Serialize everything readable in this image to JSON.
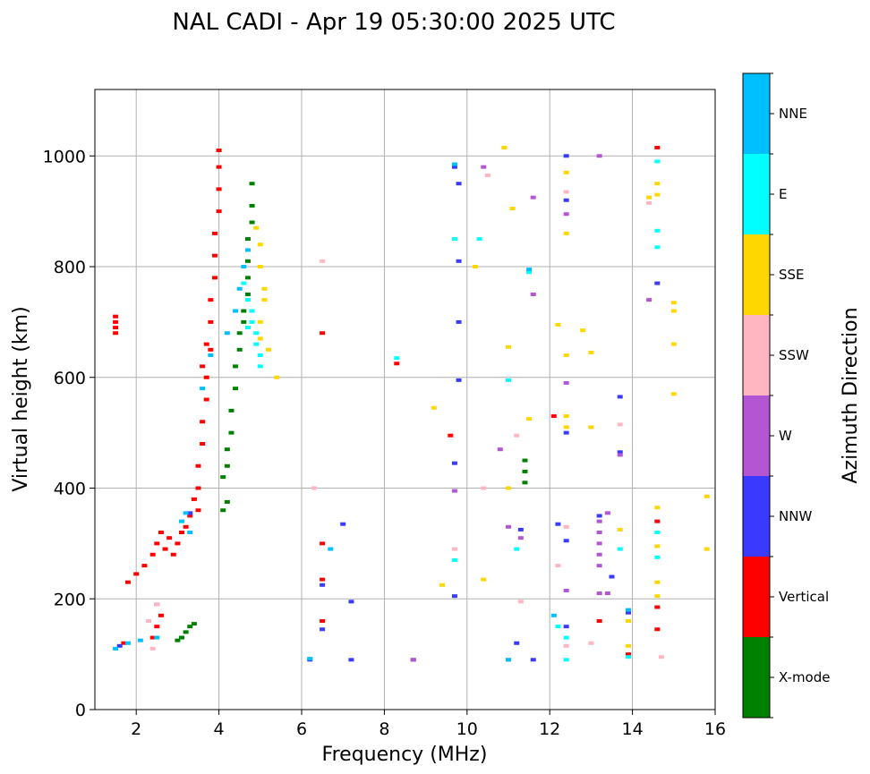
{
  "chart_data": {
    "type": "scatter",
    "title": "NAL CADI - Apr 19 05:30:00 2025 UTC",
    "xlabel": "Frequency (MHz)",
    "ylabel": "Virtual height (km)",
    "xlim": [
      1,
      16
    ],
    "ylim": [
      0,
      1120
    ],
    "xticks": [
      2,
      4,
      6,
      8,
      10,
      12,
      14,
      16
    ],
    "yticks": [
      0,
      200,
      400,
      600,
      800,
      1000
    ],
    "grid": true,
    "colorbar": {
      "title": "Azimuth Direction",
      "categories": [
        {
          "label": "X-mode",
          "color": "#008000"
        },
        {
          "label": "Vertical",
          "color": "#ff0000"
        },
        {
          "label": "NNW",
          "color": "#3a3aff"
        },
        {
          "label": "W",
          "color": "#b455d4"
        },
        {
          "label": "SSW",
          "color": "#ffb6c1"
        },
        {
          "label": "SSE",
          "color": "#ffd700"
        },
        {
          "label": "E",
          "color": "#00ffff"
        },
        {
          "label": "NNE",
          "color": "#00bfff"
        }
      ]
    },
    "series": [
      {
        "name": "X-mode",
        "color": "#008000",
        "points": [
          [
            3.0,
            125
          ],
          [
            3.1,
            130
          ],
          [
            3.2,
            140
          ],
          [
            3.3,
            150
          ],
          [
            3.4,
            155
          ],
          [
            4.1,
            360
          ],
          [
            4.2,
            375
          ],
          [
            4.1,
            420
          ],
          [
            4.2,
            440
          ],
          [
            4.2,
            470
          ],
          [
            4.3,
            500
          ],
          [
            4.3,
            540
          ],
          [
            4.4,
            580
          ],
          [
            4.4,
            620
          ],
          [
            4.5,
            650
          ],
          [
            4.5,
            680
          ],
          [
            4.6,
            700
          ],
          [
            4.6,
            720
          ],
          [
            4.7,
            750
          ],
          [
            4.7,
            780
          ],
          [
            4.7,
            810
          ],
          [
            4.7,
            850
          ],
          [
            4.8,
            880
          ],
          [
            4.8,
            910
          ],
          [
            4.8,
            950
          ],
          [
            11.4,
            410
          ],
          [
            11.4,
            430
          ],
          [
            11.4,
            450
          ]
        ]
      },
      {
        "name": "Vertical",
        "color": "#ff0000",
        "points": [
          [
            1.5,
            680
          ],
          [
            1.5,
            690
          ],
          [
            1.5,
            700
          ],
          [
            1.5,
            710
          ],
          [
            1.8,
            230
          ],
          [
            2.0,
            245
          ],
          [
            2.2,
            260
          ],
          [
            2.4,
            280
          ],
          [
            2.5,
            300
          ],
          [
            2.6,
            320
          ],
          [
            2.7,
            290
          ],
          [
            2.8,
            310
          ],
          [
            2.9,
            280
          ],
          [
            3.0,
            300
          ],
          [
            3.1,
            320
          ],
          [
            3.2,
            330
          ],
          [
            3.3,
            350
          ],
          [
            3.4,
            380
          ],
          [
            3.5,
            400
          ],
          [
            3.5,
            440
          ],
          [
            3.6,
            480
          ],
          [
            3.6,
            520
          ],
          [
            3.7,
            560
          ],
          [
            3.7,
            600
          ],
          [
            3.8,
            650
          ],
          [
            3.8,
            700
          ],
          [
            3.8,
            740
          ],
          [
            3.9,
            780
          ],
          [
            3.9,
            820
          ],
          [
            3.9,
            860
          ],
          [
            4.0,
            900
          ],
          [
            4.0,
            940
          ],
          [
            4.0,
            980
          ],
          [
            4.0,
            1010
          ],
          [
            3.6,
            620
          ],
          [
            3.7,
            660
          ],
          [
            3.5,
            360
          ],
          [
            2.4,
            130
          ],
          [
            2.5,
            150
          ],
          [
            2.6,
            170
          ],
          [
            1.7,
            120
          ],
          [
            6.5,
            680
          ],
          [
            6.5,
            300
          ],
          [
            6.5,
            235
          ],
          [
            6.5,
            160
          ],
          [
            8.3,
            625
          ],
          [
            9.6,
            495
          ],
          [
            12.1,
            530
          ],
          [
            13.2,
            160
          ],
          [
            13.9,
            100
          ],
          [
            14.6,
            1015
          ],
          [
            14.6,
            340
          ],
          [
            14.6,
            185
          ],
          [
            14.6,
            145
          ]
        ]
      },
      {
        "name": "NNW",
        "color": "#3a3aff",
        "points": [
          [
            1.6,
            115
          ],
          [
            2.5,
            190
          ],
          [
            3.3,
            355
          ],
          [
            6.2,
            90
          ],
          [
            6.5,
            225
          ],
          [
            6.5,
            145
          ],
          [
            7.0,
            335
          ],
          [
            7.2,
            90
          ],
          [
            7.2,
            195
          ],
          [
            8.7,
            90
          ],
          [
            9.7,
            980
          ],
          [
            9.8,
            950
          ],
          [
            9.8,
            810
          ],
          [
            9.8,
            700
          ],
          [
            9.8,
            595
          ],
          [
            9.7,
            445
          ],
          [
            9.7,
            205
          ],
          [
            11.2,
            120
          ],
          [
            11.3,
            325
          ],
          [
            11.6,
            90
          ],
          [
            12.2,
            335
          ],
          [
            12.4,
            1000
          ],
          [
            12.4,
            920
          ],
          [
            12.4,
            500
          ],
          [
            12.4,
            305
          ],
          [
            12.4,
            150
          ],
          [
            13.2,
            350
          ],
          [
            13.5,
            240
          ],
          [
            13.7,
            565
          ],
          [
            13.7,
            465
          ],
          [
            13.9,
            175
          ],
          [
            14.6,
            770
          ]
        ]
      },
      {
        "name": "W",
        "color": "#b455d4",
        "points": [
          [
            9.7,
            395
          ],
          [
            10.4,
            980
          ],
          [
            10.8,
            470
          ],
          [
            11.0,
            330
          ],
          [
            11.3,
            310
          ],
          [
            11.6,
            925
          ],
          [
            11.6,
            750
          ],
          [
            12.4,
            590
          ],
          [
            12.4,
            215
          ],
          [
            12.4,
            895
          ],
          [
            13.2,
            1000
          ],
          [
            13.2,
            340
          ],
          [
            13.2,
            320
          ],
          [
            13.2,
            300
          ],
          [
            13.2,
            280
          ],
          [
            13.2,
            260
          ],
          [
            13.2,
            210
          ],
          [
            13.4,
            355
          ],
          [
            13.4,
            210
          ],
          [
            13.7,
            460
          ],
          [
            14.4,
            740
          ],
          [
            8.7,
            90
          ],
          [
            11.0,
            90
          ]
        ]
      },
      {
        "name": "SSW",
        "color": "#ffb6c1",
        "points": [
          [
            2.3,
            160
          ],
          [
            2.5,
            190
          ],
          [
            2.4,
            110
          ],
          [
            6.3,
            400
          ],
          [
            6.5,
            810
          ],
          [
            9.7,
            290
          ],
          [
            10.4,
            400
          ],
          [
            10.5,
            965
          ],
          [
            11.2,
            495
          ],
          [
            11.3,
            195
          ],
          [
            12.2,
            260
          ],
          [
            12.4,
            330
          ],
          [
            12.4,
            115
          ],
          [
            12.4,
            935
          ],
          [
            13.0,
            120
          ],
          [
            13.7,
            515
          ],
          [
            14.4,
            915
          ],
          [
            14.7,
            95
          ]
        ]
      },
      {
        "name": "SSE",
        "color": "#ffd700",
        "points": [
          [
            4.9,
            870
          ],
          [
            5.0,
            840
          ],
          [
            5.0,
            800
          ],
          [
            5.1,
            760
          ],
          [
            5.1,
            740
          ],
          [
            5.0,
            700
          ],
          [
            5.0,
            670
          ],
          [
            5.2,
            650
          ],
          [
            5.4,
            600
          ],
          [
            9.2,
            545
          ],
          [
            9.4,
            225
          ],
          [
            10.2,
            800
          ],
          [
            10.4,
            235
          ],
          [
            10.9,
            1015
          ],
          [
            11.0,
            400
          ],
          [
            11.0,
            655
          ],
          [
            11.1,
            905
          ],
          [
            11.5,
            525
          ],
          [
            12.2,
            695
          ],
          [
            12.4,
            970
          ],
          [
            12.4,
            860
          ],
          [
            12.4,
            640
          ],
          [
            12.4,
            530
          ],
          [
            12.4,
            510
          ],
          [
            12.8,
            685
          ],
          [
            13.0,
            645
          ],
          [
            13.0,
            510
          ],
          [
            13.7,
            325
          ],
          [
            14.4,
            925
          ],
          [
            14.6,
            950
          ],
          [
            14.6,
            930
          ],
          [
            14.6,
            365
          ],
          [
            14.6,
            295
          ],
          [
            14.6,
            230
          ],
          [
            14.6,
            205
          ],
          [
            15.0,
            735
          ],
          [
            15.0,
            720
          ],
          [
            15.0,
            660
          ],
          [
            15.0,
            570
          ],
          [
            15.8,
            385
          ],
          [
            15.8,
            290
          ],
          [
            13.9,
            160
          ],
          [
            13.9,
            115
          ]
        ]
      },
      {
        "name": "E",
        "color": "#00ffff",
        "points": [
          [
            4.6,
            770
          ],
          [
            4.7,
            740
          ],
          [
            4.8,
            700
          ],
          [
            4.9,
            680
          ],
          [
            4.9,
            660
          ],
          [
            5.0,
            640
          ],
          [
            4.8,
            720
          ],
          [
            4.7,
            690
          ],
          [
            5.0,
            620
          ],
          [
            8.3,
            635
          ],
          [
            9.7,
            850
          ],
          [
            9.7,
            270
          ],
          [
            10.3,
            850
          ],
          [
            11.0,
            595
          ],
          [
            11.2,
            290
          ],
          [
            11.5,
            790
          ],
          [
            12.2,
            150
          ],
          [
            12.4,
            130
          ],
          [
            12.4,
            90
          ],
          [
            13.7,
            290
          ],
          [
            13.9,
            95
          ],
          [
            14.6,
            990
          ],
          [
            14.6,
            865
          ],
          [
            14.6,
            835
          ],
          [
            14.6,
            320
          ],
          [
            14.6,
            275
          ]
        ]
      },
      {
        "name": "NNE",
        "color": "#00bfff",
        "points": [
          [
            1.5,
            110
          ],
          [
            1.8,
            120
          ],
          [
            2.1,
            125
          ],
          [
            2.5,
            130
          ],
          [
            3.1,
            340
          ],
          [
            3.2,
            355
          ],
          [
            3.3,
            320
          ],
          [
            3.6,
            580
          ],
          [
            3.8,
            640
          ],
          [
            4.2,
            680
          ],
          [
            4.4,
            720
          ],
          [
            4.5,
            760
          ],
          [
            4.6,
            800
          ],
          [
            4.7,
            830
          ],
          [
            6.2,
            92
          ],
          [
            6.7,
            290
          ],
          [
            9.7,
            985
          ],
          [
            11.0,
            90
          ],
          [
            11.5,
            795
          ],
          [
            12.1,
            170
          ],
          [
            13.9,
            180
          ]
        ]
      }
    ]
  }
}
